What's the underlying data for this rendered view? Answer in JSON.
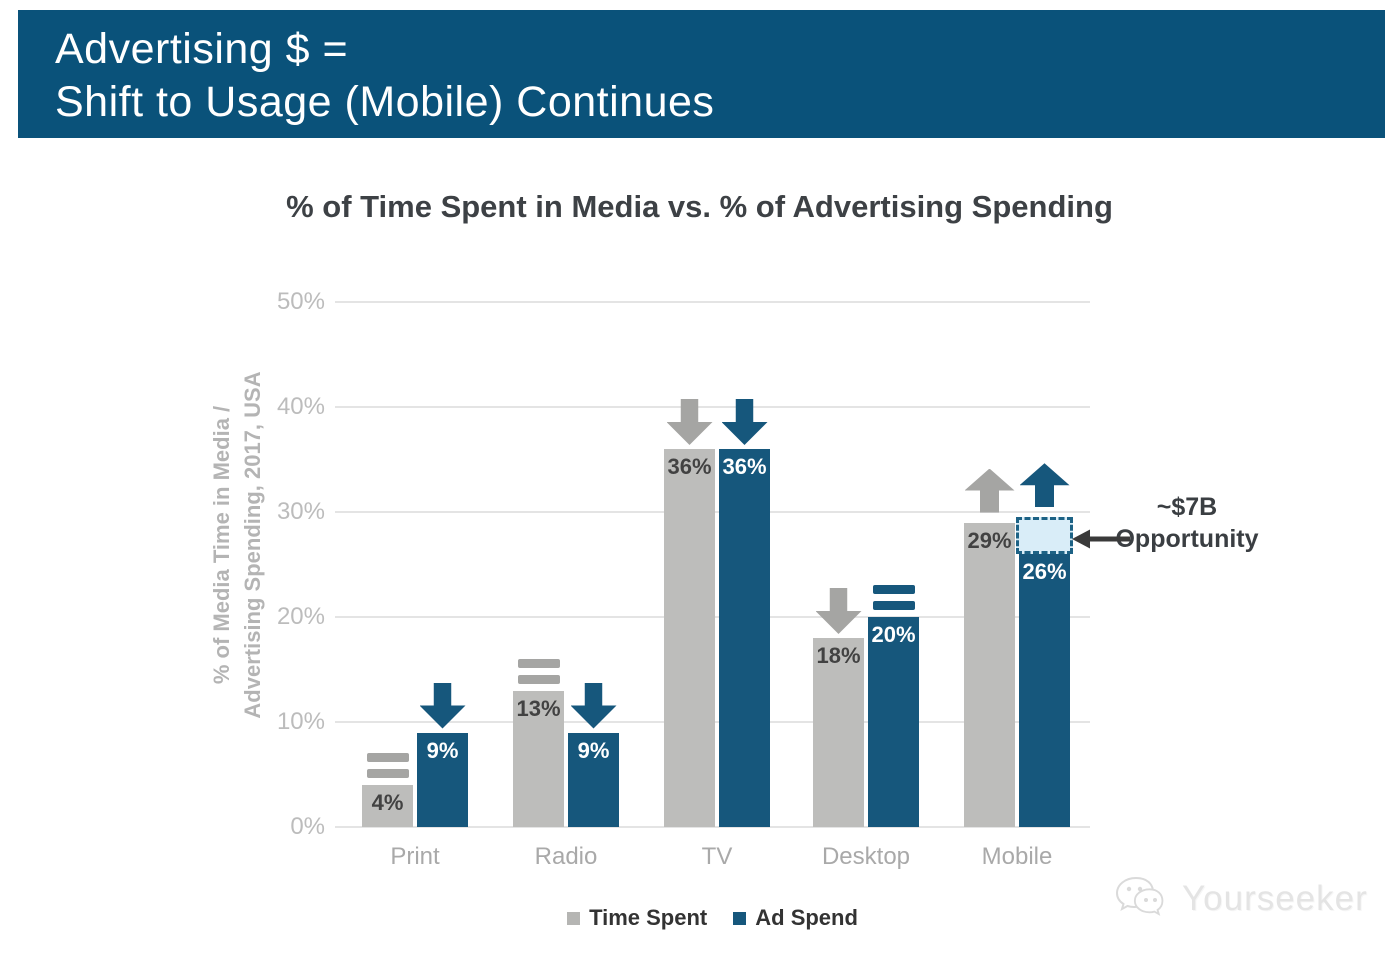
{
  "banner": {
    "line1": "Advertising $ =",
    "line2": "Shift to Usage (Mobile) Continues"
  },
  "chart_data": {
    "type": "bar",
    "title": "% of Time Spent in Media vs. % of Advertising Spending",
    "ylabel": [
      "% of Media Time in Media /",
      "Advertising Spending, 2017, USA"
    ],
    "categories": [
      "Print",
      "Radio",
      "TV",
      "Desktop",
      "Mobile"
    ],
    "yticks": [
      "0%",
      "10%",
      "20%",
      "30%",
      "40%",
      "50%"
    ],
    "ylim": [
      0,
      50
    ],
    "grid": true,
    "legend_position": "bottom",
    "series": [
      {
        "name": "Time Spent",
        "color": "#bdbdbb",
        "values": [
          4,
          13,
          36,
          18,
          29
        ],
        "labels": [
          "4%",
          "13%",
          "36%",
          "18%",
          "29%"
        ],
        "trend_markers": [
          "equal",
          "equal",
          "down",
          "down",
          "up"
        ]
      },
      {
        "name": "Ad Spend",
        "color": "#16577c",
        "values": [
          9,
          9,
          36,
          20,
          26
        ],
        "labels": [
          "9%",
          "9%",
          "36%",
          "20%",
          "26%"
        ],
        "trend_markers": [
          "down",
          "down",
          "down",
          "equal",
          "up"
        ]
      }
    ],
    "annotation": {
      "line1": "~$7B",
      "line2": "Opportunity"
    },
    "opportunity_box": {
      "category": "Mobile",
      "series": "Ad Spend",
      "from_value": 26,
      "to_value": 29.5
    }
  },
  "legend": [
    {
      "label": "Time Spent",
      "color": "#b5b5b3"
    },
    {
      "label": "Ad Spend",
      "color": "#16577c"
    }
  ],
  "watermark": {
    "text": "Yourseeker"
  },
  "colors": {
    "banner_bg": "#0a527a",
    "banner_text": "#ffffff",
    "bar_gray": "#bdbdbb",
    "bar_blue": "#16577c",
    "marker_gray": "#a5a5a3",
    "grid": "#e4e4e4",
    "tick_text": "#bcbcbc",
    "category_text": "#a9a9a9",
    "title_text": "#3d4145",
    "value_dark": "#424242",
    "value_light": "#ffffff",
    "annotation_text": "#3a3e42",
    "opportunity_fill": "#d9edf8"
  }
}
